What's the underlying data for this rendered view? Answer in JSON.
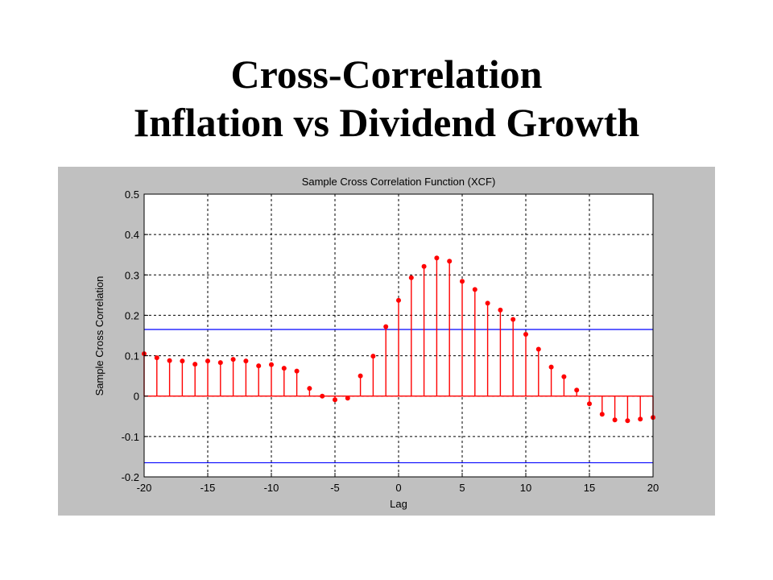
{
  "slide": {
    "title_line1": "Cross-Correlation",
    "title_line2": "Inflation vs Dividend Growth"
  },
  "colors": {
    "figure_background": "#c0c0c0",
    "axes_background": "#ffffff",
    "stem_color": "#ff0000",
    "bound_color": "#0000ff"
  },
  "chart_data": {
    "type": "stem",
    "title": "Sample Cross Correlation Function (XCF)",
    "xlabel": "Lag",
    "ylabel": "Sample Cross Correlation",
    "xlim": [
      -20,
      20
    ],
    "ylim": [
      -0.2,
      0.5
    ],
    "xticks": [
      -20,
      -15,
      -10,
      -5,
      0,
      5,
      10,
      15,
      20
    ],
    "yticks": [
      -0.2,
      -0.1,
      0,
      0.1,
      0.2,
      0.3,
      0.4,
      0.5
    ],
    "grid": true,
    "confidence_bounds": [
      0.165,
      -0.165
    ],
    "x": [
      -20,
      -19,
      -18,
      -17,
      -16,
      -15,
      -14,
      -13,
      -12,
      -11,
      -10,
      -9,
      -8,
      -7,
      -6,
      -5,
      -4,
      -3,
      -2,
      -1,
      0,
      1,
      2,
      3,
      4,
      5,
      6,
      7,
      8,
      9,
      10,
      11,
      12,
      13,
      14,
      15,
      16,
      17,
      18,
      19,
      20
    ],
    "values": [
      0.105,
      0.095,
      0.088,
      0.087,
      0.079,
      0.087,
      0.083,
      0.091,
      0.087,
      0.075,
      0.078,
      0.069,
      0.062,
      0.019,
      0.0,
      -0.009,
      -0.005,
      0.05,
      0.099,
      0.172,
      0.237,
      0.293,
      0.321,
      0.342,
      0.334,
      0.284,
      0.264,
      0.23,
      0.213,
      0.19,
      0.153,
      0.116,
      0.072,
      0.048,
      0.015,
      -0.019,
      -0.045,
      -0.059,
      -0.061,
      -0.057,
      -0.053
    ]
  }
}
